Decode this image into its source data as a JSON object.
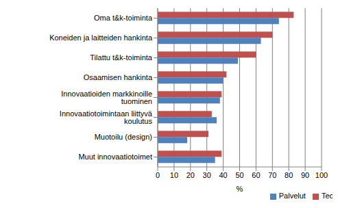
{
  "chart_data": {
    "type": "bar",
    "orientation": "horizontal",
    "categories": [
      "Oma t&k-toiminta",
      "Koneiden ja laitteiden hankinta",
      "Tilattu t&k-toiminta",
      "Osaamisen hankinta",
      "Innovaatioiden markkinoille tuominen",
      "Innovaatiotoimintaan liittyvä koulutus",
      "Muotoilu (design)",
      "Muut innovaatiotoimet"
    ],
    "series": [
      {
        "name": "Teollisuus",
        "color": "#c0504d",
        "values": [
          83,
          70,
          60,
          42,
          39,
          33,
          31,
          39
        ]
      },
      {
        "name": "Palvelut",
        "color": "#4f81bd",
        "values": [
          74,
          63,
          49,
          40,
          38,
          36,
          18,
          35
        ]
      }
    ],
    "x_label": "%",
    "xlim": [
      0,
      100
    ],
    "xticks": [
      0,
      10,
      20,
      30,
      40,
      50,
      60,
      70,
      80,
      90,
      100
    ],
    "grid": true,
    "legend": "bottom"
  }
}
